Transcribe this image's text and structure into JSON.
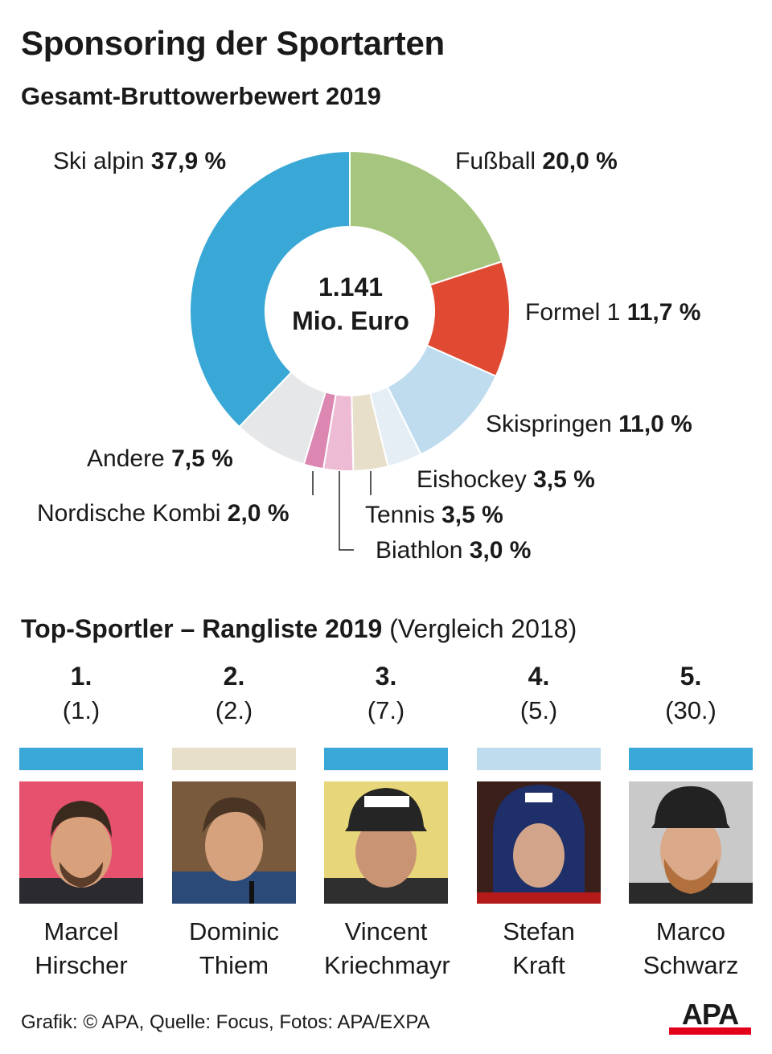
{
  "title": "Sponsoring der Sportarten",
  "subtitle": "Gesamt-Bruttowerbewert 2019",
  "chart_data": {
    "type": "pie",
    "title": "Gesamt-Bruttowerbewert 2019",
    "center_value": "1.141",
    "center_unit": "Mio. Euro",
    "slices": [
      {
        "name": "Fußball",
        "value": 20.0,
        "label": "20,0 %",
        "color": "#a6c67f"
      },
      {
        "name": "Formel 1",
        "value": 11.7,
        "label": "11,7 %",
        "color": "#e14a32"
      },
      {
        "name": "Skispringen",
        "value": 11.0,
        "label": "11,0 %",
        "color": "#bfdcef"
      },
      {
        "name": "Eishockey",
        "value": 3.5,
        "label": "3,5 %",
        "color": "#e6eef5"
      },
      {
        "name": "Tennis",
        "value": 3.5,
        "label": "3,5 %",
        "color": "#e8dfcb"
      },
      {
        "name": "Biathlon",
        "value": 3.0,
        "label": "3,0 %",
        "color": "#edbcd4"
      },
      {
        "name": "Nordische Kombi",
        "value": 2.0,
        "label": "2,0 %",
        "color": "#dc86b2"
      },
      {
        "name": "Andere",
        "value": 7.5,
        "label": "7,5 %",
        "color": "#e6e7e8"
      },
      {
        "name": "Ski alpin",
        "value": 37.9,
        "label": "37,9 %",
        "color": "#39a8d6"
      }
    ]
  },
  "ranking": {
    "title_bold": "Top-Sportler – Rangliste 2019",
    "title_rest": "(Vergleich 2018)",
    "athletes": [
      {
        "rank": "1.",
        "prev": "(1.)",
        "first": "Marcel",
        "last": "Hirscher",
        "sport_color": "#39a8d6"
      },
      {
        "rank": "2.",
        "prev": "(2.)",
        "first": "Dominic",
        "last": "Thiem",
        "sport_color": "#e8dfcb"
      },
      {
        "rank": "3.",
        "prev": "(7.)",
        "first": "Vincent",
        "last": "Kriechmayr",
        "sport_color": "#39a8d6"
      },
      {
        "rank": "4.",
        "prev": "(5.)",
        "first": "Stefan",
        "last": "Kraft",
        "sport_color": "#bfdcef"
      },
      {
        "rank": "5.",
        "prev": "(30.)",
        "first": "Marco",
        "last": "Schwarz",
        "sport_color": "#39a8d6"
      }
    ]
  },
  "footer": "Grafik: © APA, Quelle: Focus, Fotos: APA/EXPA",
  "logo_text": "APA",
  "colors": {
    "text": "#1a1a1a",
    "logo_red": "#e3001b"
  }
}
